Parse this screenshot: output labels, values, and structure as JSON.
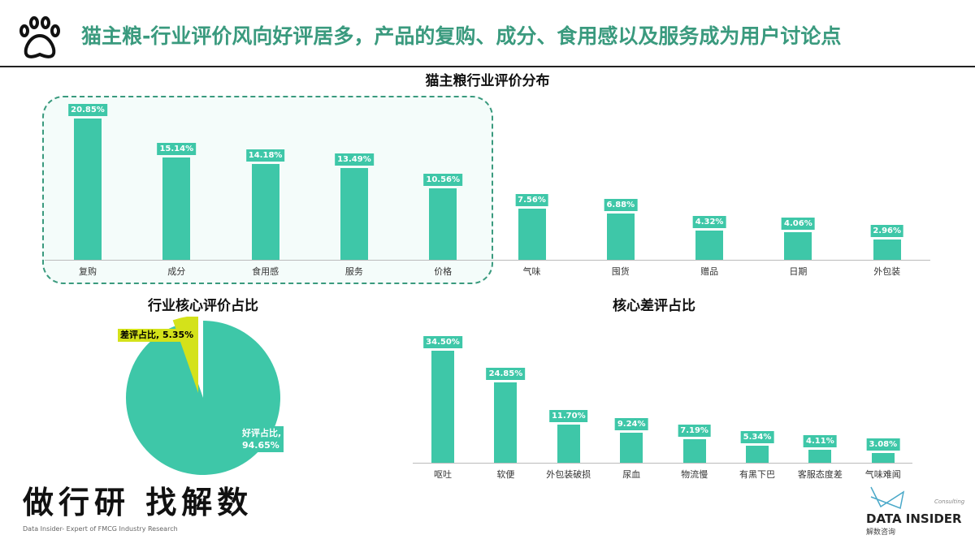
{
  "header": {
    "title": "猫主粮-行业评价风向好评居多，产品的复购、成分、食用感以及服务成为用户讨论点",
    "icon": "paw-icon"
  },
  "colors": {
    "bar": "#3ec7a8",
    "title": "#3a9a7e",
    "negative": "#d4e21a"
  },
  "chart_data": [
    {
      "type": "bar",
      "title": "猫主粮行业评价分布",
      "categories": [
        "复购",
        "成分",
        "食用感",
        "服务",
        "价格",
        "气味",
        "囤货",
        "赠品",
        "日期",
        "外包装"
      ],
      "values": [
        20.85,
        15.14,
        14.18,
        13.49,
        10.56,
        7.56,
        6.88,
        4.32,
        4.06,
        2.96
      ],
      "labels": [
        "20.85%",
        "15.14%",
        "14.18%",
        "13.49%",
        "10.56%",
        "7.56%",
        "6.88%",
        "4.32%",
        "4.06%",
        "2.96%"
      ],
      "highlighted": [
        "复购",
        "成分",
        "食用感",
        "服务",
        "价格"
      ]
    },
    {
      "type": "pie",
      "title": "行业核心评价占比",
      "slices": [
        {
          "name": "好评占比",
          "value": 94.65,
          "label": "好评占比,",
          "pct": "94.65%"
        },
        {
          "name": "差评占比",
          "value": 5.35,
          "label": "差评占比, 5.35%"
        }
      ]
    },
    {
      "type": "bar",
      "title": "核心差评占比",
      "categories": [
        "呕吐",
        "软便",
        "外包装破损",
        "尿血",
        "物流慢",
        "有黑下巴",
        "客服态度差",
        "气味难闻"
      ],
      "values": [
        34.5,
        24.85,
        11.7,
        9.24,
        7.19,
        5.34,
        4.11,
        3.08
      ],
      "labels": [
        "34.50%",
        "24.85%",
        "11.70%",
        "9.24%",
        "7.19%",
        "5.34%",
        "4.11%",
        "3.08%"
      ]
    }
  ],
  "footer": {
    "slogan": "做行研 找解数",
    "tagline": "Data Insider- Expert of FMCG Industry Research",
    "brand": "DATA INSIDER",
    "brand_cn": "解数咨询",
    "brand_sub": "Consulting"
  }
}
